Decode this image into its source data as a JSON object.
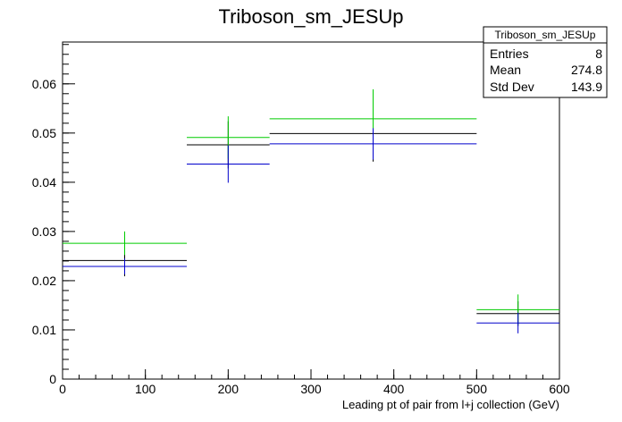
{
  "chart_data": {
    "type": "scatter",
    "title": "Triboson_sm_JESUp",
    "xlabel": "Leading pt of pair from l+j collection (GeV)",
    "ylabel": "",
    "xlim": [
      0,
      600
    ],
    "ylim": [
      0,
      0.0685
    ],
    "x_ticks": [
      0,
      100,
      200,
      300,
      400,
      500,
      600
    ],
    "y_ticks": [
      0,
      0.01,
      0.02,
      0.03,
      0.04,
      0.05,
      0.06
    ],
    "y_tick_labels": [
      "0",
      "0.01",
      "0.02",
      "0.03",
      "0.04",
      "0.05",
      "0.06"
    ],
    "grid": false,
    "stats_box": {
      "title": "Triboson_sm_JESUp",
      "rows": [
        {
          "label": "Entries",
          "value": "8"
        },
        {
          "label": "Mean",
          "value": "274.8"
        },
        {
          "label": "Std Dev",
          "value": "143.9"
        }
      ]
    },
    "series": [
      {
        "color": "#000000",
        "bins": [
          {
            "x_low": 0,
            "x_high": 150,
            "x_center": 75,
            "y": 0.0241,
            "err": 0.0032
          },
          {
            "x_low": 150,
            "x_high": 250,
            "x_center": 200,
            "y": 0.0476,
            "err": 0.0048
          },
          {
            "x_low": 250,
            "x_high": 500,
            "x_center": 375,
            "y": 0.0499,
            "err": 0.0057
          },
          {
            "x_low": 500,
            "x_high": 600,
            "x_center": 550,
            "y": 0.0133,
            "err": 0.0025
          }
        ]
      },
      {
        "color": "#00cc00",
        "bins": [
          {
            "x_low": 0,
            "x_high": 150,
            "x_center": 75,
            "y": 0.0276,
            "err": 0.0024
          },
          {
            "x_low": 150,
            "x_high": 250,
            "x_center": 200,
            "y": 0.0491,
            "err": 0.0043
          },
          {
            "x_low": 250,
            "x_high": 500,
            "x_center": 375,
            "y": 0.0529,
            "err": 0.006
          },
          {
            "x_low": 500,
            "x_high": 600,
            "x_center": 550,
            "y": 0.0141,
            "err": 0.0031
          }
        ]
      },
      {
        "color": "#0000cc",
        "bins": [
          {
            "x_low": 0,
            "x_high": 150,
            "x_center": 75,
            "y": 0.0229,
            "err": 0.0016
          },
          {
            "x_low": 150,
            "x_high": 250,
            "x_center": 200,
            "y": 0.0437,
            "err": 0.0038
          },
          {
            "x_low": 250,
            "x_high": 500,
            "x_center": 375,
            "y": 0.0478,
            "err": 0.0032
          },
          {
            "x_low": 500,
            "x_high": 600,
            "x_center": 550,
            "y": 0.0114,
            "err": 0.0021
          }
        ]
      }
    ]
  }
}
